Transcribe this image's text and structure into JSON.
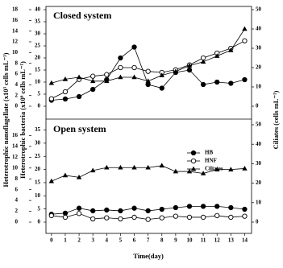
{
  "chart_data": [
    {
      "type": "line",
      "title": "Closed system",
      "ylabel": "Heterotrophic bacteria (x10⁶ cells mL⁻¹)",
      "y3label": "Heterotrophic nanoflagellate (x10³ cells mL⁻¹)",
      "y2label": "Ciliates (cells mL⁻¹)",
      "x": [
        0,
        1,
        2,
        3,
        4,
        5,
        6,
        7,
        8,
        9,
        10,
        11,
        12,
        13,
        14
      ],
      "xlim": [
        -0.4,
        14.5
      ],
      "ylim": [
        0,
        40
      ],
      "yticks": [
        0,
        5,
        10,
        15,
        20,
        25,
        30,
        35,
        40
      ],
      "y2lim": [
        0,
        50
      ],
      "y2ticks": [
        0,
        10,
        20,
        30,
        40,
        50
      ],
      "y3lim": [
        0,
        18
      ],
      "y3ticks": [
        0,
        2,
        4,
        6,
        8,
        10,
        12,
        14,
        16,
        18
      ],
      "series": [
        {
          "color": "#000000",
          "marker": "circle-filled",
          "axis": "y",
          "values": [
            2.5,
            3,
            4,
            7,
            11,
            20,
            24.5,
            9,
            7.5,
            14,
            15,
            9,
            10,
            9.5,
            11
          ]
        },
        {
          "color": "#000000",
          "marker": "circle-open",
          "axis": "y3",
          "values": [
            1.4,
            2.7,
            5,
            5.6,
            5.9,
            7.2,
            7.2,
            6.5,
            6.3,
            6.8,
            7.7,
            9,
            9.9,
            10.8,
            12.2
          ]
        },
        {
          "color": "#000000",
          "marker": "triangle",
          "axis": "y2",
          "values": [
            12,
            14,
            15,
            13,
            13,
            15,
            15,
            13,
            16,
            18,
            21,
            23,
            26,
            29,
            40
          ]
        }
      ]
    },
    {
      "type": "line",
      "title": "Open system",
      "xlabel": "Time(day)",
      "x": [
        0,
        1,
        2,
        3,
        4,
        5,
        6,
        7,
        8,
        9,
        10,
        11,
        12,
        13,
        14
      ],
      "xlim": [
        -0.4,
        14.5
      ],
      "xticks": [
        0,
        1,
        2,
        3,
        4,
        5,
        6,
        7,
        8,
        9,
        10,
        11,
        12,
        13,
        14
      ],
      "ylim": [
        0,
        37
      ],
      "yticks": [
        0,
        5,
        10,
        15,
        20,
        25,
        30,
        35
      ],
      "y2lim": [
        0,
        50
      ],
      "y2ticks": [
        0,
        10,
        20,
        30,
        40,
        50
      ],
      "y3lim": [
        0,
        18
      ],
      "y3ticks": [
        0,
        2,
        4,
        6,
        8,
        10,
        12,
        14,
        16
      ],
      "legend": "upper right",
      "series": [
        {
          "name": "HB",
          "color": "#000000",
          "marker": "circle-filled",
          "axis": "y",
          "values": [
            3,
            3.4,
            5.3,
            4.3,
            4.6,
            4.3,
            5.3,
            4.3,
            4.9,
            5.5,
            6,
            6,
            6,
            5.5,
            4.9
          ]
        },
        {
          "name": "HNF",
          "color": "#000000",
          "marker": "circle-open",
          "axis": "y3",
          "values": [
            1.2,
            0.9,
            1.6,
            0.6,
            0.8,
            0.6,
            0.9,
            0.5,
            0.8,
            1.1,
            0.9,
            0.9,
            1.2,
            0.9,
            1.1
          ]
        },
        {
          "name": "Ciliates",
          "color": "#000000",
          "marker": "triangle",
          "axis": "y2",
          "values": [
            21,
            24,
            23,
            26.5,
            28,
            28,
            28,
            28,
            29,
            26,
            26,
            25,
            27,
            27,
            27.5
          ]
        }
      ]
    }
  ]
}
